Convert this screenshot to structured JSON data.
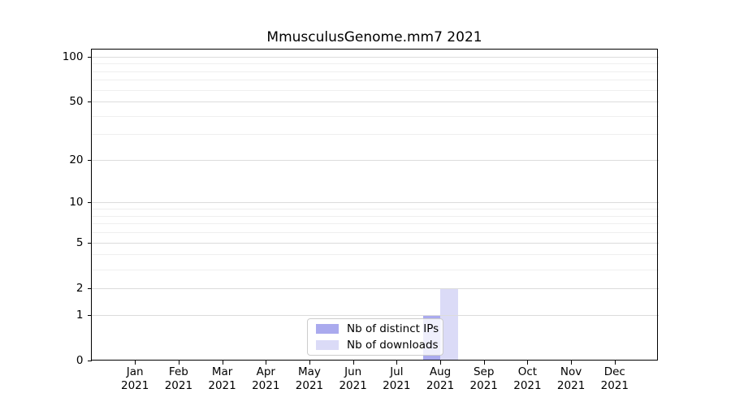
{
  "chart_data": {
    "type": "bar",
    "title": "MmusculusGenome.mm7 2021",
    "categories": [
      "Jan 2021",
      "Feb 2021",
      "Mar 2021",
      "Apr 2021",
      "May 2021",
      "Jun 2021",
      "Jul 2021",
      "Aug 2021",
      "Sep 2021",
      "Oct 2021",
      "Nov 2021",
      "Dec 2021"
    ],
    "series": [
      {
        "name": "Nb of distinct IPs",
        "color": "#aaaaee",
        "values": [
          0,
          0,
          0,
          0,
          0,
          0,
          0,
          1,
          0,
          0,
          0,
          0
        ]
      },
      {
        "name": "Nb of downloads",
        "color": "#dbdbf7",
        "values": [
          0,
          0,
          0,
          0,
          0,
          0,
          0,
          2,
          0,
          0,
          0,
          0
        ]
      }
    ],
    "xlabel": "",
    "ylabel": "",
    "yscale": "log1p",
    "ylim": [
      0,
      112
    ],
    "y_major_ticks": [
      0,
      1,
      2,
      5,
      10,
      20,
      50,
      100
    ],
    "y_minor_ticks": [
      3,
      4,
      6,
      7,
      8,
      9,
      30,
      40,
      60,
      70,
      80,
      90
    ],
    "grid": "horizontal-major-and-minor",
    "legend_position": "lower center"
  },
  "legend": {
    "items": [
      {
        "label": "Nb of distinct IPs",
        "color": "#aaaaee"
      },
      {
        "label": "Nb of downloads",
        "color": "#dbdbf7"
      }
    ]
  },
  "colors": {
    "background": "#ffffff",
    "frame": "#000000",
    "grid_major": "#dcdcdc",
    "grid_minor": "#efefef",
    "bar_ips": "#aaaaee",
    "bar_downloads": "#dbdbf7"
  }
}
